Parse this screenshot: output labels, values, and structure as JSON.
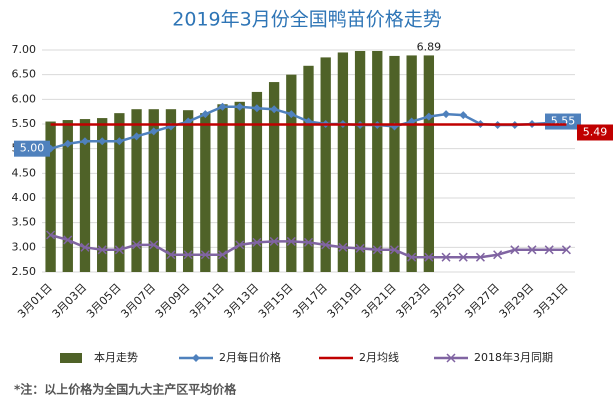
{
  "chart_data": {
    "type": "bar-line",
    "title": "2019年3月份全国鸭苗价格走势",
    "categories": [
      "3月01日",
      null,
      "3月03日",
      null,
      "3月05日",
      null,
      "3月07日",
      null,
      "3月09日",
      null,
      "3月11日",
      null,
      "3月13日",
      null,
      "3月15日",
      null,
      "3月17日",
      null,
      "3月19日",
      null,
      "3月21日",
      null,
      "3月23日",
      null,
      "3月25日",
      null,
      "3月27日",
      null,
      "3月29日",
      null,
      "3月31日"
    ],
    "ylim": [
      2.5,
      7.0
    ],
    "yticks": [
      {
        "value": 2.5,
        "label": "2.50"
      },
      {
        "value": 3.0,
        "label": "3.00"
      },
      {
        "value": 3.5,
        "label": "3.50"
      },
      {
        "value": 4.0,
        "label": "4.00"
      },
      {
        "value": 4.5,
        "label": "4.50"
      },
      {
        "value": 5.0,
        "label": "5.00"
      },
      {
        "value": 5.5,
        "label": "5.50"
      },
      {
        "value": 6.0,
        "label": "6.00"
      },
      {
        "value": 6.5,
        "label": "6.50"
      },
      {
        "value": 7.0,
        "label": "7.00"
      }
    ],
    "grid": true,
    "legend": "bottom",
    "series": [
      {
        "name": "本月走势",
        "kind": "bar",
        "color": "#4f6228",
        "values": [
          5.55,
          5.58,
          5.6,
          5.62,
          5.72,
          5.8,
          5.8,
          5.8,
          5.78,
          5.72,
          5.9,
          5.95,
          6.15,
          6.35,
          6.5,
          6.68,
          6.85,
          6.95,
          6.98,
          6.98,
          6.88,
          6.89,
          6.89,
          null,
          null,
          null,
          null,
          null,
          null,
          null,
          null
        ]
      },
      {
        "name": "2月每日价格",
        "kind": "line",
        "marker": "diamond",
        "color": "#4f81bd",
        "values": [
          5.0,
          5.1,
          5.15,
          5.15,
          5.15,
          5.25,
          5.35,
          5.45,
          5.55,
          5.7,
          5.85,
          5.85,
          5.82,
          5.8,
          5.7,
          5.55,
          5.5,
          5.5,
          5.48,
          5.48,
          5.45,
          5.55,
          5.65,
          5.7,
          5.68,
          5.5,
          5.48,
          5.48,
          5.5,
          5.52,
          5.55
        ],
        "value_labels": [
          "5.00",
          null,
          null,
          null,
          null,
          null,
          null,
          null,
          null,
          null,
          null,
          null,
          null,
          null,
          null,
          null,
          null,
          null,
          null,
          null,
          null,
          null,
          null,
          null,
          null,
          null,
          null,
          null,
          null,
          null,
          "5.55"
        ]
      },
      {
        "name": "2月均线",
        "kind": "line",
        "color": "#c00000",
        "values": [
          5.49,
          5.49,
          5.49,
          5.49,
          5.49,
          5.49,
          5.49,
          5.49,
          5.49,
          5.49,
          5.49,
          5.49,
          5.49,
          5.49,
          5.49,
          5.49,
          5.49,
          5.49,
          5.49,
          5.49,
          5.49,
          5.49,
          5.49,
          5.49,
          5.49,
          5.49,
          5.49,
          5.49,
          5.49,
          5.49,
          5.49
        ]
      },
      {
        "name": "2018年3月同期",
        "kind": "line",
        "marker": "x",
        "color": "#8064a2",
        "values": [
          3.25,
          3.15,
          3.0,
          2.95,
          2.95,
          3.05,
          3.05,
          2.85,
          2.85,
          2.85,
          2.85,
          3.05,
          3.1,
          3.12,
          3.12,
          3.1,
          3.05,
          3.0,
          2.98,
          2.95,
          2.95,
          2.8,
          2.8,
          2.8,
          2.8,
          2.8,
          2.85,
          2.95,
          2.95,
          2.95,
          2.95
        ]
      }
    ],
    "footnote": "*注：以上价格为全国九大主产区平均价格"
  }
}
